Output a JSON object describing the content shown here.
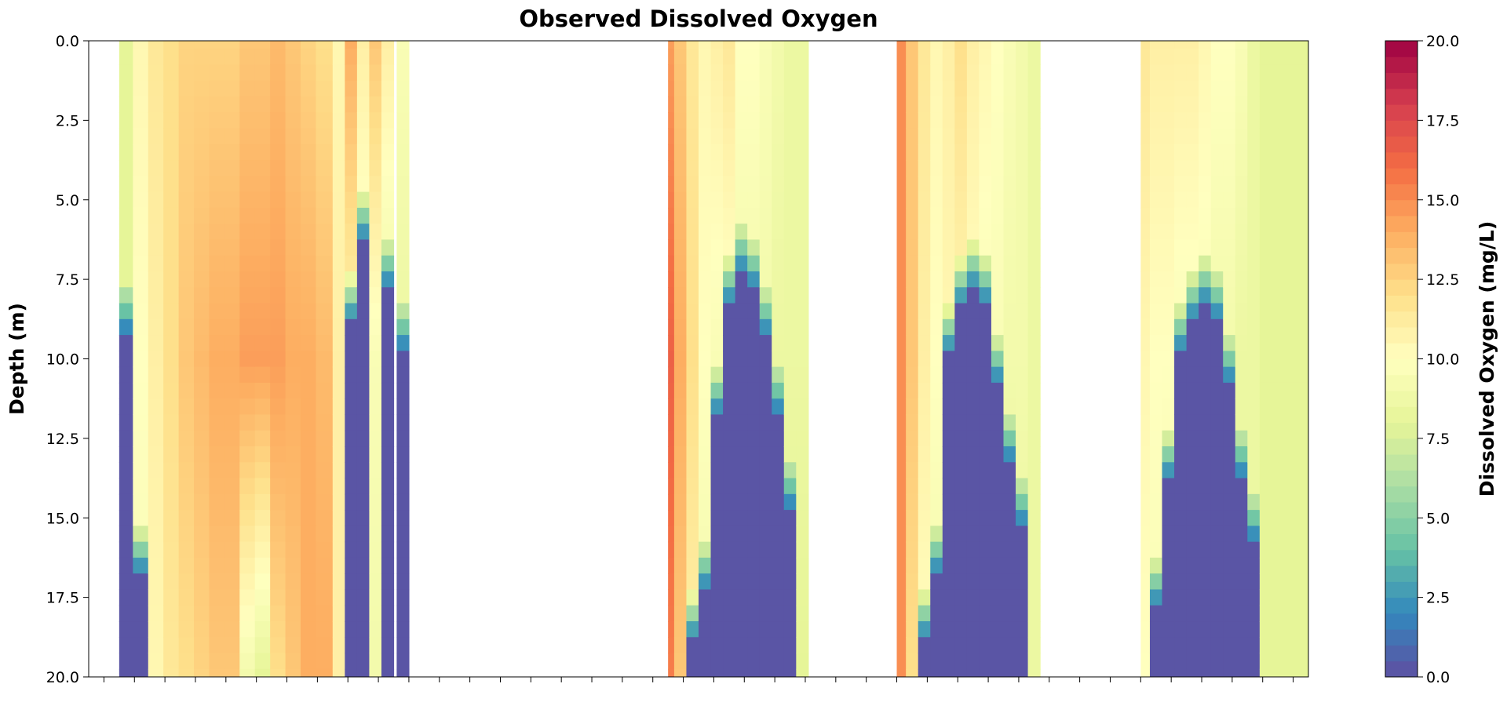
{
  "chart_data": {
    "type": "heatmap",
    "title": "Observed Dissolved Oxygen",
    "ylabel": "Depth (m)",
    "xlabel": "",
    "y_axis": {
      "range": [
        0,
        20
      ],
      "inverted": true,
      "ticks": [
        "0.0",
        "2.5",
        "5.0",
        "7.5",
        "10.0",
        "12.5",
        "15.0",
        "17.5",
        "20.0"
      ]
    },
    "x_axis": {
      "tick_labels_shown": false,
      "range": [
        0,
        40
      ],
      "minor_tick_count": 40
    },
    "colorbar": {
      "label": "Dissolved Oxygen (mg/L)",
      "range": [
        0,
        20
      ],
      "colormap": "Spectral_r",
      "ticks": [
        "0.0",
        "2.5",
        "5.0",
        "7.5",
        "10.0",
        "12.5",
        "15.0",
        "17.5",
        "20.0"
      ]
    },
    "depths": [
      0.0,
      0.5,
      1.0,
      1.5,
      2.0,
      2.5,
      3.0,
      3.5,
      4.0,
      4.5,
      5.0,
      5.5,
      6.0,
      6.5,
      7.0,
      7.5,
      8.0,
      8.5,
      9.0,
      9.5,
      10.0,
      10.5,
      11.0,
      11.5,
      12.0,
      12.5,
      13.0,
      13.5,
      14.0,
      14.5,
      15.0,
      15.5,
      16.0,
      16.5,
      17.0,
      17.5,
      18.0,
      18.5,
      19.0,
      19.5,
      20.0
    ],
    "profiles": [
      {
        "x": 1.2,
        "surface": 8.0,
        "mid": 8.0,
        "bottom": 8.0,
        "anoxic_depth": 9.5
      },
      {
        "x": 1.7,
        "surface": 10.5,
        "mid": 10.0,
        "bottom": 9.5,
        "anoxic_depth": 17.0
      },
      {
        "x": 2.2,
        "surface": 11.5,
        "mid": 11.0,
        "bottom": 10.5
      },
      {
        "x": 2.7,
        "surface": 12.0,
        "mid": 12.0,
        "bottom": 11.5
      },
      {
        "x": 3.2,
        "surface": 12.5,
        "mid": 13.0,
        "bottom": 12.0
      },
      {
        "x": 3.7,
        "surface": 12.5,
        "mid": 13.5,
        "bottom": 12.5
      },
      {
        "x": 4.2,
        "surface": 12.5,
        "mid": 14.0,
        "bottom": 13.0
      },
      {
        "x": 4.7,
        "surface": 12.5,
        "mid": 14.0,
        "bottom": 13.0
      },
      {
        "x": 5.2,
        "surface": 13.0,
        "mid": 14.5,
        "bottom": 9.0
      },
      {
        "x": 5.7,
        "surface": 13.0,
        "mid": 14.5,
        "bottom": 8.0
      },
      {
        "x": 6.2,
        "surface": 13.5,
        "mid": 14.5,
        "bottom": 12.0
      },
      {
        "x": 6.7,
        "surface": 13.0,
        "mid": 14.0,
        "bottom": 13.0
      },
      {
        "x": 7.2,
        "surface": 12.5,
        "mid": 14.0,
        "bottom": 14.0
      },
      {
        "x": 7.7,
        "surface": 12.0,
        "mid": 13.5,
        "bottom": 14.0
      },
      {
        "x": 8.2,
        "surface": 10.5,
        "mid": 11.0,
        "bottom": 11.0
      },
      {
        "x": 8.6,
        "surface": 14.0,
        "mid": 10.5,
        "bottom": 9.0,
        "anoxic_depth": 9.0
      },
      {
        "x": 9.0,
        "surface": 11.0,
        "mid": 9.0,
        "bottom": 8.0,
        "anoxic_depth": 6.5
      },
      {
        "x": 9.4,
        "surface": 13.0,
        "mid": 9.5,
        "bottom": 9.0
      },
      {
        "x": 9.8,
        "surface": 11.0,
        "mid": 8.5,
        "bottom": 8.0,
        "anoxic_depth": 8.0
      },
      {
        "x": 10.3,
        "surface": 9.5,
        "mid": 8.5,
        "bottom": 8.0,
        "anoxic_depth": 10.0
      },
      {
        "x": 19.0,
        "surface": 14.5,
        "mid": 16.5,
        "bottom": 15.5
      },
      {
        "x": 19.4,
        "surface": 13.0,
        "mid": 14.0,
        "bottom": 13.0
      },
      {
        "x": 19.8,
        "surface": 11.5,
        "mid": 12.0,
        "bottom": 11.0,
        "anoxic_depth": 19.0
      },
      {
        "x": 20.2,
        "surface": 10.5,
        "mid": 10.0,
        "bottom": 9.0,
        "anoxic_depth": 17.5
      },
      {
        "x": 20.6,
        "surface": 11.0,
        "mid": 9.5,
        "bottom": 8.5,
        "anoxic_depth": 12.0
      },
      {
        "x": 21.0,
        "surface": 11.5,
        "mid": 9.5,
        "bottom": 8.5,
        "anoxic_depth": 8.5
      },
      {
        "x": 21.4,
        "surface": 10.0,
        "mid": 9.0,
        "bottom": 8.0,
        "anoxic_depth": 7.5
      },
      {
        "x": 21.8,
        "surface": 10.0,
        "mid": 9.0,
        "bottom": 8.0,
        "anoxic_depth": 8.0
      },
      {
        "x": 22.2,
        "surface": 9.5,
        "mid": 9.0,
        "bottom": 8.0,
        "anoxic_depth": 9.5
      },
      {
        "x": 22.6,
        "surface": 9.0,
        "mid": 8.5,
        "bottom": 8.0,
        "anoxic_depth": 12.0
      },
      {
        "x": 23.0,
        "surface": 8.5,
        "mid": 8.5,
        "bottom": 8.0,
        "anoxic_depth": 15.0
      },
      {
        "x": 23.4,
        "surface": 8.5,
        "mid": 8.5,
        "bottom": 8.0
      },
      {
        "x": 26.6,
        "surface": 15.0,
        "mid": 15.0,
        "bottom": 15.0
      },
      {
        "x": 27.0,
        "surface": 13.0,
        "mid": 13.0,
        "bottom": 12.0
      },
      {
        "x": 27.4,
        "surface": 11.5,
        "mid": 11.0,
        "bottom": 10.0,
        "anoxic_depth": 19.0
      },
      {
        "x": 27.8,
        "surface": 10.5,
        "mid": 10.0,
        "bottom": 9.0,
        "anoxic_depth": 17.0
      },
      {
        "x": 28.2,
        "surface": 11.0,
        "mid": 10.5,
        "bottom": 9.0,
        "anoxic_depth": 10.0
      },
      {
        "x": 28.6,
        "surface": 12.0,
        "mid": 10.5,
        "bottom": 9.0,
        "anoxic_depth": 8.5
      },
      {
        "x": 29.0,
        "surface": 11.0,
        "mid": 10.0,
        "bottom": 9.0,
        "anoxic_depth": 8.0
      },
      {
        "x": 29.4,
        "surface": 10.5,
        "mid": 9.5,
        "bottom": 8.5,
        "anoxic_depth": 8.5
      },
      {
        "x": 29.8,
        "surface": 10.0,
        "mid": 9.5,
        "bottom": 8.5,
        "anoxic_depth": 11.0
      },
      {
        "x": 30.2,
        "surface": 9.5,
        "mid": 9.0,
        "bottom": 8.0,
        "anoxic_depth": 13.5
      },
      {
        "x": 30.6,
        "surface": 9.0,
        "mid": 9.0,
        "bottom": 8.5,
        "anoxic_depth": 15.5
      },
      {
        "x": 31.0,
        "surface": 8.5,
        "mid": 8.5,
        "bottom": 8.5
      },
      {
        "x": 34.6,
        "surface": 11.5,
        "mid": 10.5,
        "bottom": 10.0
      },
      {
        "x": 35.0,
        "surface": 11.0,
        "mid": 10.0,
        "bottom": 9.5,
        "anoxic_depth": 18.0
      },
      {
        "x": 35.4,
        "surface": 11.0,
        "mid": 10.0,
        "bottom": 9.0,
        "anoxic_depth": 14.0
      },
      {
        "x": 35.8,
        "surface": 11.0,
        "mid": 9.5,
        "bottom": 9.0,
        "anoxic_depth": 10.0
      },
      {
        "x": 36.2,
        "surface": 11.0,
        "mid": 9.5,
        "bottom": 9.0,
        "anoxic_depth": 9.0
      },
      {
        "x": 36.6,
        "surface": 10.5,
        "mid": 9.5,
        "bottom": 9.0,
        "anoxic_depth": 8.5
      },
      {
        "x": 37.0,
        "surface": 10.0,
        "mid": 9.0,
        "bottom": 8.5,
        "anoxic_depth": 9.0
      },
      {
        "x": 37.4,
        "surface": 10.0,
        "mid": 9.0,
        "bottom": 8.5,
        "anoxic_depth": 11.0
      },
      {
        "x": 37.8,
        "surface": 9.5,
        "mid": 8.5,
        "bottom": 8.5,
        "anoxic_depth": 14.0
      },
      {
        "x": 38.2,
        "surface": 8.5,
        "mid": 8.5,
        "bottom": 8.5,
        "anoxic_depth": 16.0
      },
      {
        "x": 38.6,
        "surface": 8.0,
        "mid": 8.0,
        "bottom": 8.0
      },
      {
        "x": 39.4,
        "surface": 8.0,
        "mid": 8.0,
        "bottom": 8.0
      }
    ],
    "segments": [
      [
        1.0,
        8.0
      ],
      [
        19.0,
        23.6
      ],
      [
        26.5,
        31.2
      ],
      [
        34.5,
        40.0
      ]
    ],
    "grid": false
  }
}
